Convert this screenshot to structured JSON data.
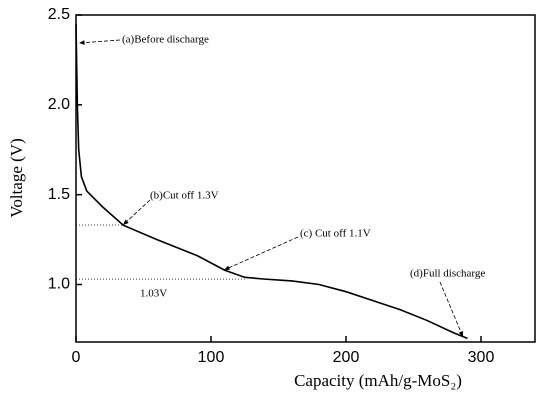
{
  "chart_data": {
    "type": "line",
    "x_label": "Capacity (mAh/g-MoS₂)",
    "y_label": "Voltage (V)",
    "x": [
      0,
      1,
      2,
      4,
      8,
      20,
      35,
      60,
      90,
      110,
      125,
      140,
      160,
      180,
      200,
      220,
      240,
      260,
      280,
      290
    ],
    "values": [
      2.45,
      2.0,
      1.75,
      1.6,
      1.52,
      1.43,
      1.33,
      1.25,
      1.16,
      1.08,
      1.04,
      1.03,
      1.02,
      1.0,
      0.96,
      0.91,
      0.86,
      0.8,
      0.73,
      0.7
    ],
    "color": "#000000",
    "xlim": [
      0,
      340
    ],
    "xticks": [
      0,
      100,
      200,
      300
    ],
    "ylim": [
      0.68,
      2.5
    ],
    "yticks": [
      {
        "value": 1,
        "label": "1.0"
      },
      1.5,
      {
        "value": 2,
        "label": "2.0"
      },
      2.5
    ],
    "annotations": [
      {
        "text": "(a)Before discharge"
      },
      {
        "text": "(b)Cut off 1.3V"
      },
      {
        "text": "(c) Cut off 1.1V"
      },
      {
        "text": "(d)Full discharge"
      },
      {
        "text": "1.03V",
        "value": 1.03
      }
    ]
  }
}
